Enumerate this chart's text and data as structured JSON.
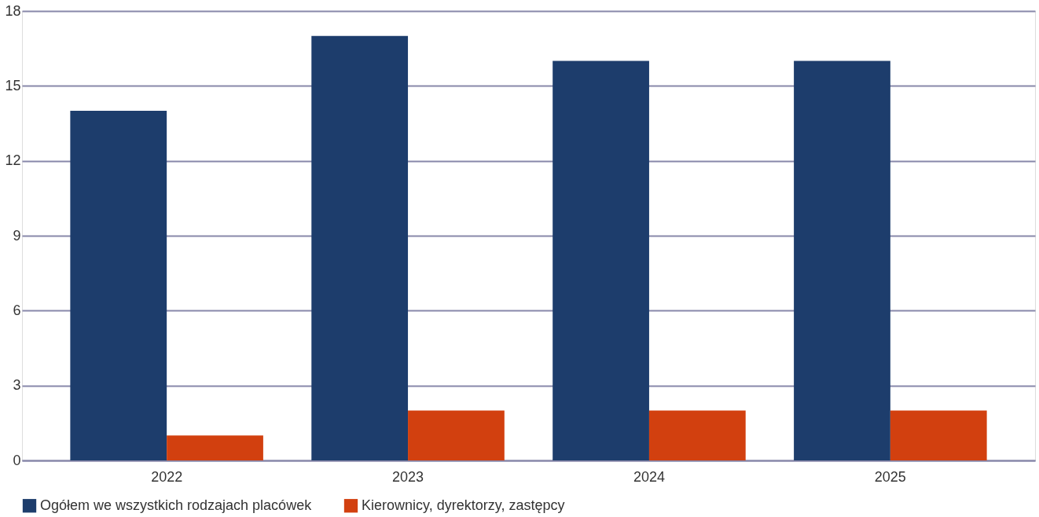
{
  "chart_data": {
    "type": "bar",
    "categories": [
      "2022",
      "2023",
      "2024",
      "2025"
    ],
    "series": [
      {
        "name": "Ogółem we wszystkich rodzajach placówek",
        "color": "#1d3d6c",
        "values": [
          14,
          17,
          16,
          16
        ]
      },
      {
        "name": "Kierownicy, dyrektorzy, zastępcy",
        "color": "#d2400f",
        "values": [
          1,
          2,
          2,
          2
        ]
      }
    ],
    "ylim": [
      0,
      18
    ],
    "yticks": [
      0,
      3,
      6,
      9,
      12,
      15,
      18
    ],
    "grid": "y",
    "legend": "bottom"
  }
}
